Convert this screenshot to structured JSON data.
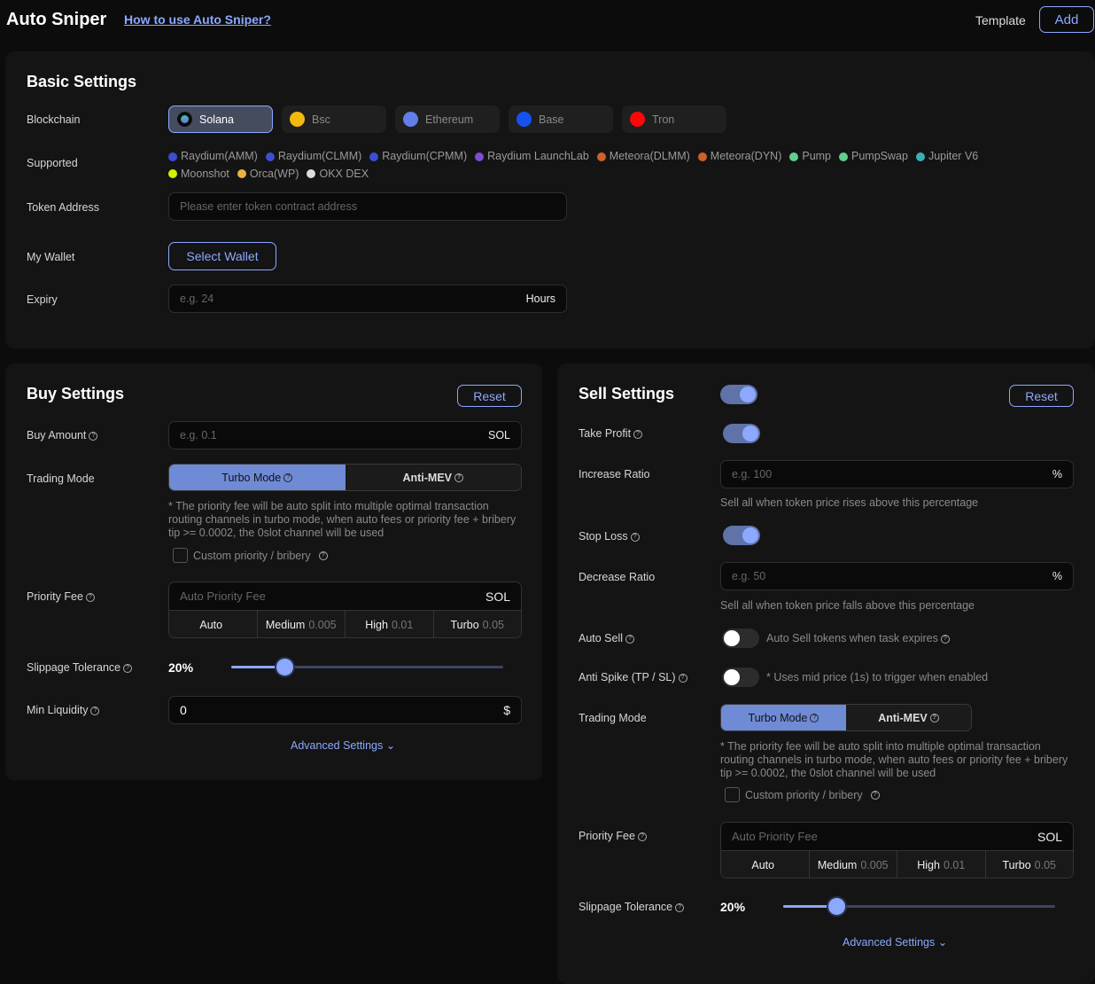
{
  "header": {
    "title": "Auto Sniper",
    "help_link": "How to use Auto Sniper?",
    "template": "Template",
    "add": "Add"
  },
  "basic": {
    "title": "Basic Settings",
    "blockchain_label": "Blockchain",
    "chains": [
      {
        "name": "Solana",
        "color": "#0b0b0b",
        "selected": true
      },
      {
        "name": "Bsc",
        "color": "#f0b90b"
      },
      {
        "name": "Ethereum",
        "color": "#627eea"
      },
      {
        "name": "Base",
        "color": "#1652f0"
      },
      {
        "name": "Tron",
        "color": "#ff060a"
      }
    ],
    "supported_label": "Supported",
    "dexes": [
      {
        "name": "Raydium(AMM)",
        "color": "#3b4fd0"
      },
      {
        "name": "Raydium(CLMM)",
        "color": "#3b4fd0"
      },
      {
        "name": "Raydium(CPMM)",
        "color": "#3b4fd0"
      },
      {
        "name": "Raydium LaunchLab",
        "color": "#7a4fd0"
      },
      {
        "name": "Meteora(DLMM)",
        "color": "#d0602a"
      },
      {
        "name": "Meteora(DYN)",
        "color": "#d0602a"
      },
      {
        "name": "Pump",
        "color": "#5fd08a"
      },
      {
        "name": "PumpSwap",
        "color": "#5fd08a"
      },
      {
        "name": "Jupiter V6",
        "color": "#3bb0b0"
      },
      {
        "name": "Moonshot",
        "color": "#d4f000"
      },
      {
        "name": "Orca(WP)",
        "color": "#f0b040"
      },
      {
        "name": "OKX DEX",
        "color": "#dddddd"
      }
    ],
    "token_label": "Token Address",
    "token_placeholder": "Please enter token contract address",
    "wallet_label": "My Wallet",
    "wallet_button": "Select Wallet",
    "expiry_label": "Expiry",
    "expiry_placeholder": "e.g. 24",
    "expiry_unit": "Hours"
  },
  "buy": {
    "title": "Buy Settings",
    "reset": "Reset",
    "amount_label": "Buy Amount",
    "amount_placeholder": "e.g. 0.1",
    "amount_unit": "SOL",
    "mode_label": "Trading Mode",
    "mode_turbo": "Turbo Mode",
    "mode_antimev": "Anti-MEV",
    "selected_mode": "Turbo Mode",
    "note": "* The priority fee will be auto split into multiple optimal transaction routing channels in turbo mode, when auto fees or priority fee + bribery tip >= 0.0002, the 0slot channel will be used",
    "custom": "Custom priority / bribery",
    "custom_checked": false,
    "fee_label": "Priority Fee",
    "fee_placeholder": "Auto Priority Fee",
    "fee_unit": "SOL",
    "fee_opts": [
      {
        "name": "Auto",
        "value": ""
      },
      {
        "name": "Medium",
        "value": "0.005"
      },
      {
        "name": "High",
        "value": "0.01"
      },
      {
        "name": "Turbo",
        "value": "0.05"
      }
    ],
    "slip_label": "Slippage Tolerance",
    "slip_value": "20%",
    "slip_pct": 20,
    "liq_label": "Min Liquidity",
    "liq_value": "0",
    "liq_unit": "$",
    "advanced": "Advanced Settings ⌄"
  },
  "sell": {
    "title": "Sell Settings",
    "enabled": true,
    "reset": "Reset",
    "tp_label": "Take Profit",
    "tp_on": true,
    "inc_label": "Increase Ratio",
    "inc_placeholder": "e.g. 100",
    "inc_unit": "%",
    "inc_hint": "Sell all when token price rises above this percentage",
    "sl_label": "Stop Loss",
    "sl_on": true,
    "dec_label": "Decrease Ratio",
    "dec_placeholder": "e.g. 50",
    "dec_unit": "%",
    "dec_hint": "Sell all when token price falls above this percentage",
    "autosell_label": "Auto Sell",
    "autosell_on": false,
    "autosell_hint": "Auto Sell tokens when task expires",
    "spike_label": "Anti Spike (TP / SL)",
    "spike_on": false,
    "spike_hint": "* Uses mid price (1s) to trigger when enabled",
    "mode_label": "Trading Mode",
    "mode_turbo": "Turbo Mode",
    "mode_antimev": "Anti-MEV",
    "selected_mode": "Turbo Mode",
    "note": "* The priority fee will be auto split into multiple optimal transaction routing channels in turbo mode, when auto fees or priority fee + bribery tip >= 0.0002, the 0slot channel will be used",
    "custom": "Custom priority / bribery",
    "custom_checked": false,
    "fee_label": "Priority Fee",
    "fee_placeholder": "Auto Priority Fee",
    "fee_unit": "SOL",
    "fee_opts": [
      {
        "name": "Auto",
        "value": ""
      },
      {
        "name": "Medium",
        "value": "0.005"
      },
      {
        "name": "High",
        "value": "0.01"
      },
      {
        "name": "Turbo",
        "value": "0.05"
      }
    ],
    "slip_label": "Slippage Tolerance",
    "slip_value": "20%",
    "slip_pct": 20,
    "advanced": "Advanced Settings ⌄"
  },
  "colors": {
    "accent": "#8ca8ff",
    "turbo_fill": "#6f8bd6",
    "background": "#0c0c0c",
    "panel": "#141414"
  }
}
